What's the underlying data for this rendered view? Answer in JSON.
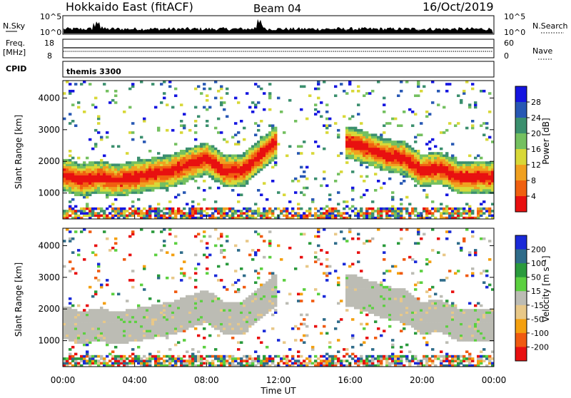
{
  "header": {
    "site": "Hokkaido East (fitACF)",
    "beam": "Beam 04",
    "date": "16/Oct/2019"
  },
  "summary_panels": {
    "nsky_label": "N.Sky",
    "nsky_ticks": [
      "10^5",
      "10^0"
    ],
    "nsearch_label": "N.Search",
    "nsearch_ticks": [
      "10^5",
      "10^0"
    ],
    "freq_label": "Freq.",
    "freq_unit": "[MHz]",
    "freq_ticks": [
      "18",
      "8"
    ],
    "nave_label": "Nave",
    "nave_ticks": [
      "60",
      "0"
    ],
    "cpid_label": "CPID",
    "cpid_value": "themis 3300"
  },
  "chart_data": [
    {
      "type": "heatmap",
      "title": "",
      "ylabel": "Slant Range [km]",
      "yticks": [
        "1000",
        "2000",
        "3000",
        "4000"
      ],
      "ylim": [
        180,
        4550
      ],
      "xlim": [
        0,
        24
      ],
      "colorbar_label": "Power [dB]",
      "colorbar_ticks": [
        "4",
        "8",
        "12",
        "16",
        "20",
        "24",
        "28"
      ],
      "colorbar_colors": [
        "#1515e0",
        "#2858b4",
        "#3b8f6e",
        "#74c060",
        "#d8d838",
        "#f0a020",
        "#f06010",
        "#e81010"
      ]
    },
    {
      "type": "heatmap",
      "title": "",
      "ylabel": "Slant Range [km]",
      "yticks": [
        "1000",
        "2000",
        "3000",
        "4000"
      ],
      "ylim": [
        180,
        4550
      ],
      "xlim": [
        0,
        24
      ],
      "xlabel": "Time UT",
      "xticks": [
        "00:00",
        "04:00",
        "08:00",
        "12:00",
        "16:00",
        "20:00",
        "00:00"
      ],
      "colorbar_label": "Velocity [m s⁻¹]",
      "colorbar_ticks": [
        "200",
        "100",
        "50",
        "15",
        "-15",
        "-50",
        "-100",
        "-200"
      ],
      "colorbar_colors": [
        "#1a2ad8",
        "#2f6c8a",
        "#2a9a3c",
        "#5cd040",
        "#bcbcb4",
        "#e8c888",
        "#f4a010",
        "#f05a10",
        "#e81010"
      ]
    }
  ]
}
